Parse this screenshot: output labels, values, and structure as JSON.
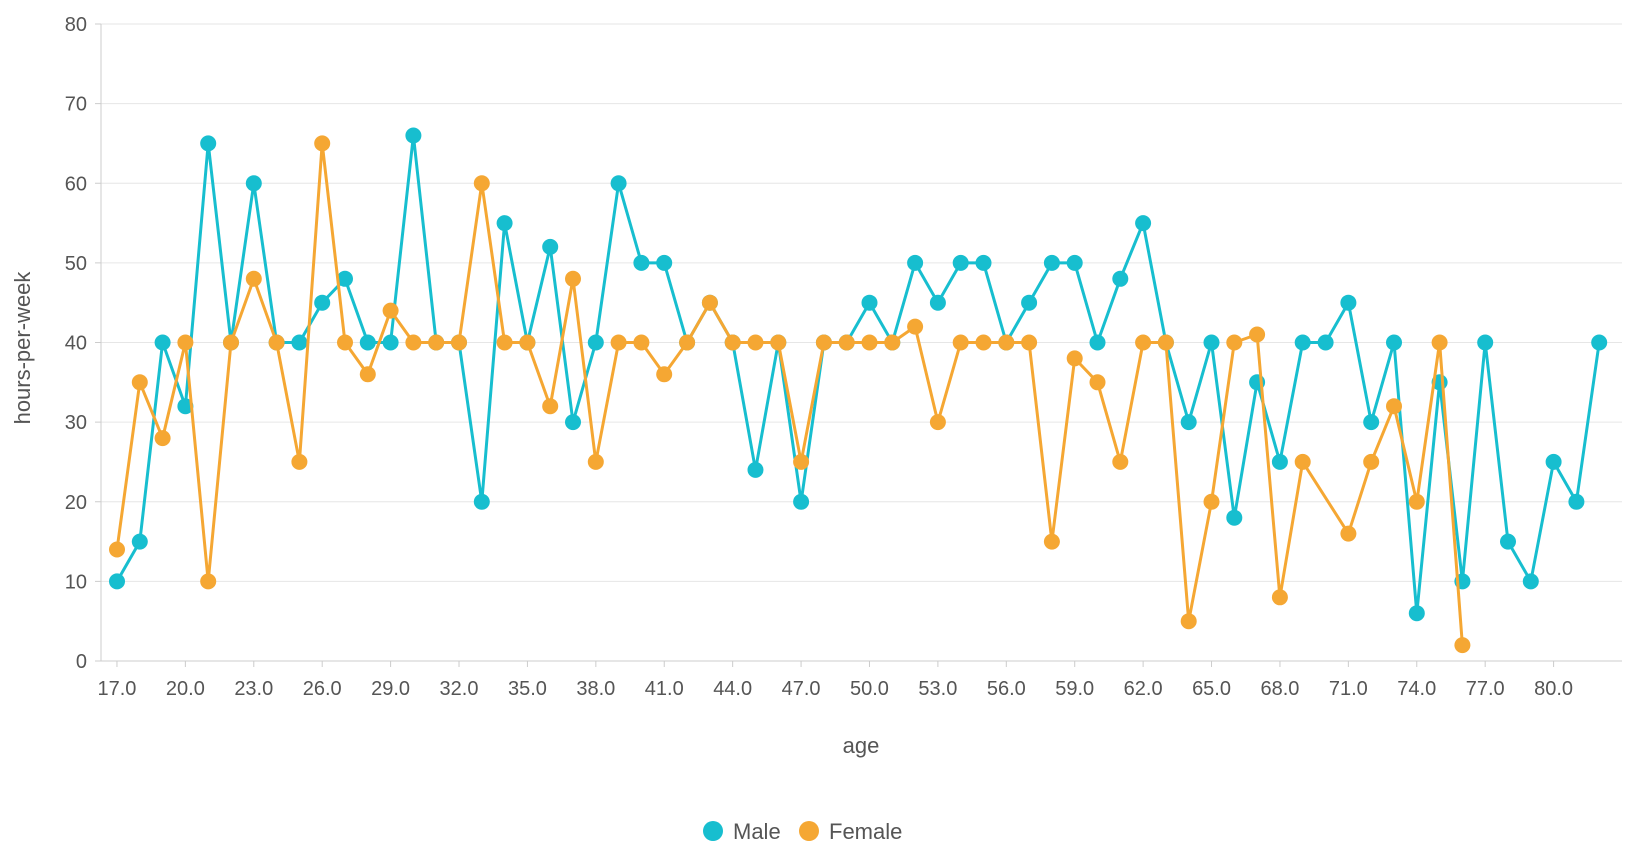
{
  "chart_data": {
    "type": "line",
    "title": "",
    "xlabel": "age",
    "ylabel": "hours-per-week",
    "ylim": [
      0,
      80
    ],
    "yticks": [
      0,
      10,
      20,
      30,
      40,
      50,
      60,
      70,
      80
    ],
    "xlim": [
      16.3,
      83
    ],
    "xticks": [
      "17.0",
      "20.0",
      "23.0",
      "26.0",
      "29.0",
      "32.0",
      "35.0",
      "38.0",
      "41.0",
      "44.0",
      "47.0",
      "50.0",
      "53.0",
      "56.0",
      "59.0",
      "62.0",
      "65.0",
      "68.0",
      "71.0",
      "74.0",
      "77.0",
      "80.0"
    ],
    "grid": true,
    "legend_position": "bottom-center",
    "series": [
      {
        "name": "Male",
        "color": "#17becf",
        "points": [
          [
            17,
            10
          ],
          [
            18,
            15
          ],
          [
            19,
            40
          ],
          [
            20,
            32
          ],
          [
            21,
            65
          ],
          [
            22,
            40
          ],
          [
            23,
            60
          ],
          [
            24,
            40
          ],
          [
            25,
            40
          ],
          [
            26,
            45
          ],
          [
            27,
            48
          ],
          [
            28,
            40
          ],
          [
            29,
            40
          ],
          [
            30,
            66
          ],
          [
            31,
            40
          ],
          [
            32,
            40
          ],
          [
            33,
            20
          ],
          [
            34,
            55
          ],
          [
            35,
            40
          ],
          [
            36,
            52
          ],
          [
            37,
            30
          ],
          [
            38,
            40
          ],
          [
            39,
            60
          ],
          [
            40,
            50
          ],
          [
            41,
            50
          ],
          [
            42,
            40
          ],
          [
            43,
            45
          ],
          [
            44,
            40
          ],
          [
            45,
            24
          ],
          [
            46,
            40
          ],
          [
            47,
            20
          ],
          [
            48,
            40
          ],
          [
            49,
            40
          ],
          [
            50,
            45
          ],
          [
            51,
            40
          ],
          [
            52,
            50
          ],
          [
            53,
            45
          ],
          [
            54,
            50
          ],
          [
            55,
            50
          ],
          [
            56,
            40
          ],
          [
            57,
            45
          ],
          [
            58,
            50
          ],
          [
            59,
            50
          ],
          [
            60,
            40
          ],
          [
            61,
            48
          ],
          [
            62,
            55
          ],
          [
            63,
            40
          ],
          [
            64,
            30
          ],
          [
            65,
            40
          ],
          [
            66,
            18
          ],
          [
            67,
            35
          ],
          [
            68,
            25
          ],
          [
            69,
            40
          ],
          [
            70,
            40
          ],
          [
            71,
            45
          ],
          [
            72,
            30
          ],
          [
            73,
            40
          ],
          [
            74,
            6
          ],
          [
            75,
            35
          ],
          [
            76,
            10
          ],
          [
            77,
            40
          ],
          [
            78,
            15
          ],
          [
            79,
            10
          ],
          [
            80,
            25
          ],
          [
            81,
            20
          ],
          [
            82,
            40
          ]
        ]
      },
      {
        "name": "Female",
        "color": "#f5a733",
        "points": [
          [
            17,
            14
          ],
          [
            18,
            35
          ],
          [
            19,
            28
          ],
          [
            20,
            40
          ],
          [
            21,
            10
          ],
          [
            22,
            40
          ],
          [
            23,
            48
          ],
          [
            24,
            40
          ],
          [
            25,
            25
          ],
          [
            26,
            65
          ],
          [
            27,
            40
          ],
          [
            28,
            36
          ],
          [
            29,
            44
          ],
          [
            30,
            40
          ],
          [
            31,
            40
          ],
          [
            32,
            40
          ],
          [
            33,
            60
          ],
          [
            34,
            40
          ],
          [
            35,
            40
          ],
          [
            36,
            32
          ],
          [
            37,
            48
          ],
          [
            38,
            25
          ],
          [
            39,
            40
          ],
          [
            40,
            40
          ],
          [
            41,
            36
          ],
          [
            42,
            40
          ],
          [
            43,
            45
          ],
          [
            44,
            40
          ],
          [
            45,
            40
          ],
          [
            46,
            40
          ],
          [
            47,
            25
          ],
          [
            48,
            40
          ],
          [
            49,
            40
          ],
          [
            50,
            40
          ],
          [
            51,
            40
          ],
          [
            52,
            42
          ],
          [
            53,
            30
          ],
          [
            54,
            40
          ],
          [
            55,
            40
          ],
          [
            56,
            40
          ],
          [
            57,
            40
          ],
          [
            58,
            15
          ],
          [
            59,
            38
          ],
          [
            60,
            35
          ],
          [
            61,
            25
          ],
          [
            62,
            40
          ],
          [
            63,
            40
          ],
          [
            64,
            5
          ],
          [
            65,
            20
          ],
          [
            66,
            40
          ],
          [
            67,
            41
          ],
          [
            68,
            8
          ],
          [
            69,
            25
          ],
          [
            71,
            16
          ],
          [
            72,
            25
          ],
          [
            73,
            32
          ],
          [
            74,
            20
          ],
          [
            75,
            40
          ],
          [
            76,
            2
          ]
        ]
      }
    ]
  }
}
